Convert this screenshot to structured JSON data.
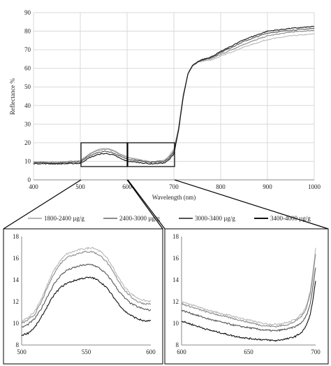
{
  "chart_data": [
    {
      "type": "line",
      "panel": "main",
      "xlabel": "Wavelength (nm)",
      "ylabel": "Reflectance %",
      "xlim": [
        400,
        1000
      ],
      "ylim": [
        0,
        90
      ],
      "xticks": [
        400,
        500,
        600,
        700,
        800,
        900,
        1000
      ],
      "yticks": [
        0,
        10,
        20,
        30,
        40,
        50,
        60,
        70,
        80,
        90
      ],
      "grid": true,
      "x": [
        400,
        450,
        500,
        520,
        540,
        555,
        570,
        590,
        600,
        650,
        680,
        690,
        700,
        710,
        720,
        730,
        740,
        750,
        760,
        780,
        800,
        850,
        900,
        950,
        1000
      ],
      "series": [
        {
          "name": "1800-2400 µg/g",
          "color": "#b8b8b8",
          "values": [
            9.8,
            9.6,
            10.4,
            14.2,
            16.5,
            17.0,
            16.1,
            13.4,
            12.3,
            9.8,
            10.6,
            12.8,
            16.8,
            28,
            46,
            57,
            61.5,
            63,
            63.8,
            64.5,
            66.5,
            71.5,
            75.5,
            77.5,
            78.5
          ]
        },
        {
          "name": "2400-3000 µg/g",
          "color": "#8a8a8a",
          "values": [
            9.5,
            9.3,
            10.1,
            13.8,
            16.0,
            16.6,
            15.8,
            13.0,
            11.9,
            9.6,
            10.3,
            12.4,
            15.8,
            27.5,
            45.5,
            57,
            61.5,
            63.2,
            64.2,
            65.2,
            67.5,
            73,
            77.5,
            79.5,
            80.5
          ]
        },
        {
          "name": "3000-3400 µg/g",
          "color": "#555555",
          "values": [
            9.2,
            9.0,
            9.6,
            13.0,
            14.9,
            15.4,
            14.6,
            12.1,
            11.2,
            9.3,
            9.8,
            11.8,
            15.0,
            27,
            45,
            57,
            61.5,
            63.3,
            64.5,
            65.8,
            68.5,
            74.5,
            79,
            80.5,
            81.5
          ]
        },
        {
          "name": "3400-4000 µg/g",
          "color": "#111111",
          "values": [
            8.8,
            8.6,
            8.9,
            12.0,
            13.8,
            14.2,
            13.5,
            11.0,
            10.1,
            8.6,
            9.1,
            10.8,
            14.0,
            26.5,
            44.5,
            57,
            61.5,
            63.4,
            64.8,
            66.2,
            69,
            75.5,
            80,
            81.5,
            82.5
          ]
        }
      ]
    },
    {
      "type": "line",
      "panel": "zoom-left",
      "xlim": [
        500,
        600
      ],
      "ylim": [
        8,
        18
      ],
      "xticks": [
        500,
        550,
        600
      ],
      "yticks": [
        8,
        10,
        12,
        14,
        16,
        18
      ],
      "grid": false,
      "x": [
        500,
        505,
        510,
        515,
        520,
        525,
        530,
        535,
        540,
        545,
        550,
        555,
        560,
        565,
        570,
        575,
        580,
        585,
        590,
        595,
        600
      ],
      "series": [
        {
          "name": "1800-2400 µg/g",
          "color": "#b8b8b8",
          "values": [
            10.2,
            10.5,
            11.1,
            12.2,
            13.6,
            14.9,
            15.8,
            16.4,
            16.6,
            16.8,
            16.9,
            17.0,
            16.7,
            16.2,
            15.3,
            14.2,
            13.3,
            12.7,
            12.3,
            12.1,
            12.0
          ]
        },
        {
          "name": "2400-3000 µg/g",
          "color": "#8a8a8a",
          "values": [
            10.0,
            10.3,
            10.8,
            11.9,
            13.3,
            14.6,
            15.5,
            16.1,
            16.3,
            16.5,
            16.6,
            16.6,
            16.3,
            15.8,
            14.9,
            13.9,
            13.0,
            12.4,
            12.0,
            11.8,
            11.8
          ]
        },
        {
          "name": "3000-3400 µg/g",
          "color": "#555555",
          "values": [
            9.6,
            9.9,
            10.4,
            11.3,
            12.5,
            13.6,
            14.4,
            14.9,
            15.1,
            15.3,
            15.4,
            15.4,
            15.1,
            14.6,
            13.9,
            13.0,
            12.3,
            11.8,
            11.5,
            11.3,
            11.2
          ]
        },
        {
          "name": "3400-4000 µg/g",
          "color": "#111111",
          "values": [
            8.9,
            9.1,
            9.6,
            10.5,
            11.6,
            12.6,
            13.3,
            13.7,
            13.9,
            14.1,
            14.2,
            14.2,
            13.9,
            13.4,
            12.6,
            11.8,
            11.1,
            10.7,
            10.4,
            10.2,
            10.2
          ]
        }
      ]
    },
    {
      "type": "line",
      "panel": "zoom-right",
      "xlim": [
        600,
        700
      ],
      "ylim": [
        8,
        18
      ],
      "xticks": [
        600,
        650,
        700
      ],
      "yticks": [
        8,
        10,
        12,
        14,
        16,
        18
      ],
      "grid": false,
      "x": [
        600,
        610,
        620,
        630,
        640,
        650,
        660,
        670,
        680,
        685,
        690,
        693,
        696,
        698,
        700
      ],
      "series": [
        {
          "name": "1800-2400 µg/g",
          "color": "#b8b8b8",
          "values": [
            12.0,
            11.6,
            11.2,
            10.9,
            10.6,
            10.3,
            10.0,
            9.9,
            10.1,
            10.4,
            10.9,
            11.6,
            13.0,
            14.8,
            16.9
          ]
        },
        {
          "name": "2400-3000 µg/g",
          "color": "#8a8a8a",
          "values": [
            11.8,
            11.4,
            11.0,
            10.7,
            10.4,
            10.1,
            9.8,
            9.7,
            9.9,
            10.2,
            10.7,
            11.4,
            12.7,
            14.4,
            16.4
          ]
        },
        {
          "name": "3000-3400 µg/g",
          "color": "#555555",
          "values": [
            11.2,
            10.8,
            10.4,
            10.1,
            9.8,
            9.6,
            9.4,
            9.3,
            9.5,
            9.7,
            10.1,
            10.7,
            11.8,
            13.4,
            15.2
          ]
        },
        {
          "name": "3400-4000 µg/g",
          "color": "#111111",
          "values": [
            10.2,
            9.8,
            9.4,
            9.1,
            8.8,
            8.6,
            8.5,
            8.4,
            8.6,
            8.8,
            9.2,
            9.8,
            10.8,
            12.2,
            13.9
          ]
        }
      ]
    }
  ]
}
